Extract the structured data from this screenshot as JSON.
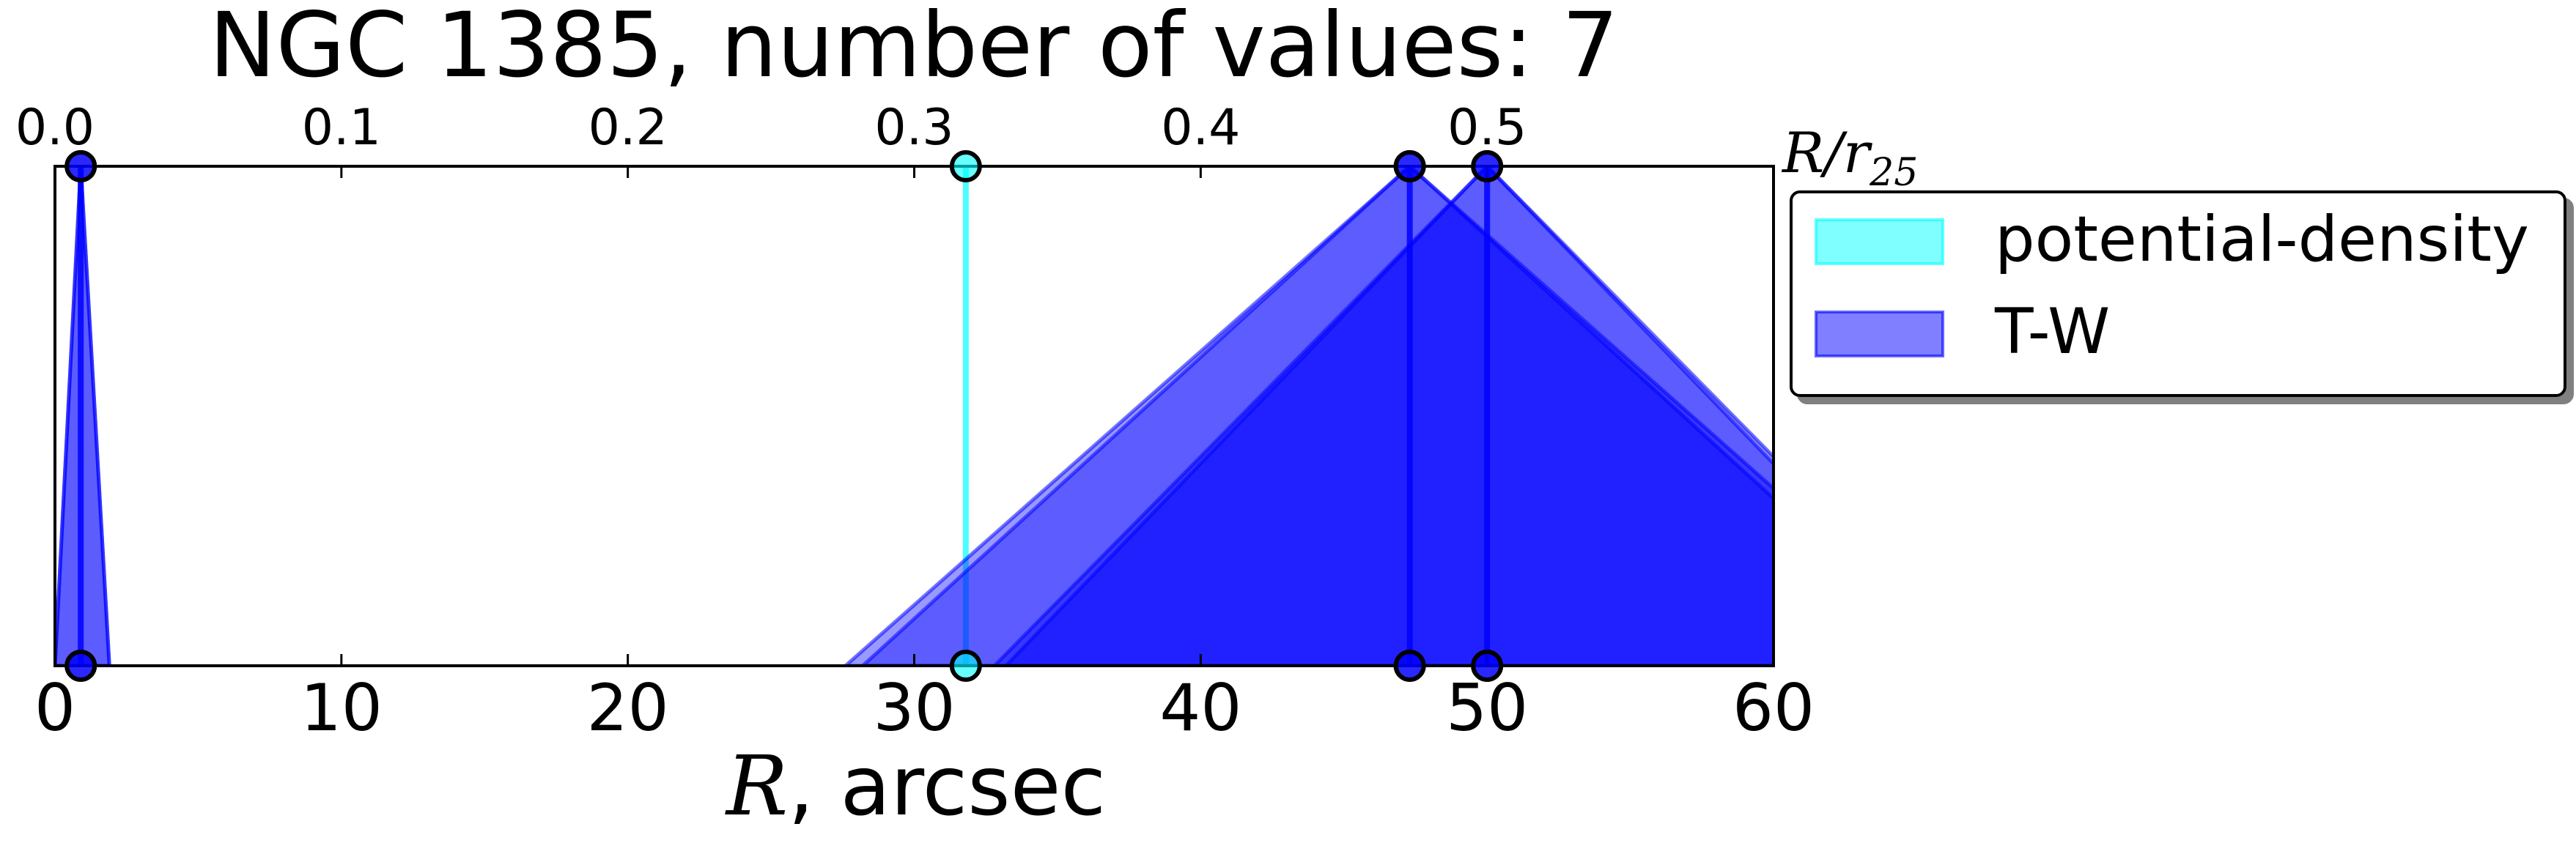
{
  "chart_data": {
    "type": "area",
    "title": "NGC 1385, number of values: 7",
    "xlabel_var": "R",
    "xlabel_unit": ", arcsec",
    "x_ticks": [
      0,
      10,
      20,
      30,
      40,
      50,
      60
    ],
    "xlim": [
      0,
      60
    ],
    "top_axis": {
      "label_var": "R/r",
      "label_sub": "25",
      "tick_values": [
        0.0,
        0.1,
        0.2,
        0.3,
        0.4,
        0.5
      ],
      "tick_labels": [
        "0.0",
        "0.1",
        "0.2",
        "0.3",
        "0.4",
        "0.5"
      ],
      "arcsec_per_unit": 100.0
    },
    "grid": false,
    "legend_position": "outside-right-top",
    "series": [
      {
        "name": "potential-density",
        "color": "#00ffff",
        "values": [
          {
            "x": 31.8,
            "left": 31.8,
            "right": 31.8
          }
        ]
      },
      {
        "name": "T-W",
        "color": "#0000ff",
        "values": [
          {
            "x": 0.9,
            "left": 0.0,
            "right": 1.9
          },
          {
            "x": 0.9,
            "left": 0.0,
            "right": 1.9
          },
          {
            "x": 47.3,
            "left": 27.6,
            "right": 67.0
          },
          {
            "x": 47.3,
            "left": 28.2,
            "right": 66.4
          },
          {
            "x": 50.0,
            "left": 32.8,
            "right": 67.2
          },
          {
            "x": 50.0,
            "left": 33.2,
            "right": 66.8
          }
        ]
      }
    ]
  }
}
